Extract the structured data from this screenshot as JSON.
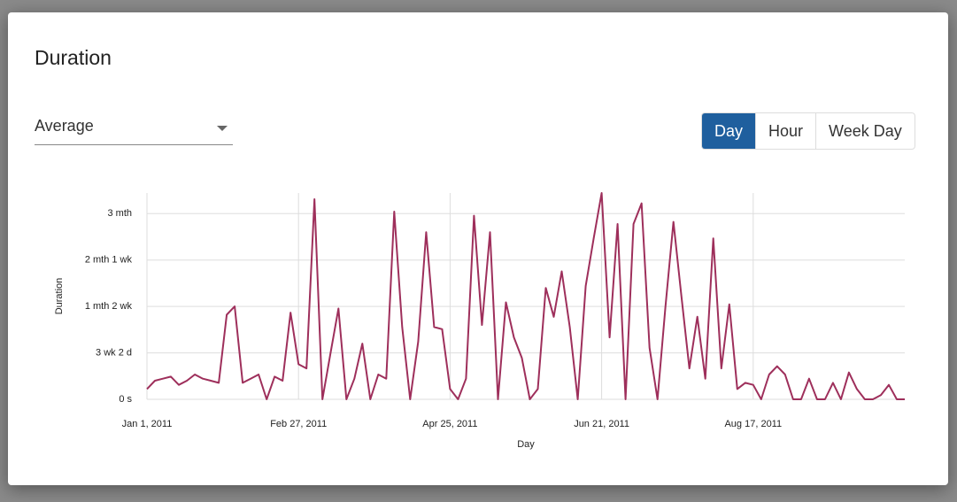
{
  "dialog": {
    "title": "Duration",
    "dropdown": "Average",
    "buttons": [
      "Day",
      "Hour",
      "Week Day"
    ]
  },
  "chart_data": {
    "type": "line",
    "x_label": "Day",
    "y_label": "Duration",
    "color": "#9e2f5b",
    "grid": true,
    "x": [
      "2011-01-01",
      "2011-01-04",
      "2011-01-07",
      "2011-01-10",
      "2011-01-13",
      "2011-01-16",
      "2011-01-19",
      "2011-01-22",
      "2011-01-25",
      "2011-01-28",
      "2011-01-31",
      "2011-02-03",
      "2011-02-06",
      "2011-02-09",
      "2011-02-12",
      "2011-02-15",
      "2011-02-18",
      "2011-02-21",
      "2011-02-24",
      "2011-02-27",
      "2011-03-02",
      "2011-03-05",
      "2011-03-08",
      "2011-03-11",
      "2011-03-14",
      "2011-03-17",
      "2011-03-20",
      "2011-03-23",
      "2011-03-26",
      "2011-03-29",
      "2011-04-01",
      "2011-04-04",
      "2011-04-07",
      "2011-04-10",
      "2011-04-13",
      "2011-04-16",
      "2011-04-19",
      "2011-04-22",
      "2011-04-25",
      "2011-04-28",
      "2011-05-01",
      "2011-05-04",
      "2011-05-07",
      "2011-05-10",
      "2011-05-13",
      "2011-05-16",
      "2011-05-19",
      "2011-05-22",
      "2011-05-25",
      "2011-05-28",
      "2011-05-31",
      "2011-06-03",
      "2011-06-06",
      "2011-06-09",
      "2011-06-12",
      "2011-06-15",
      "2011-06-18",
      "2011-06-21",
      "2011-06-24",
      "2011-06-27",
      "2011-06-30",
      "2011-07-03",
      "2011-07-06",
      "2011-07-09",
      "2011-07-12",
      "2011-07-15",
      "2011-07-18",
      "2011-07-21",
      "2011-07-24",
      "2011-07-27",
      "2011-07-30",
      "2011-08-02",
      "2011-08-05",
      "2011-08-08",
      "2011-08-11",
      "2011-08-14",
      "2011-08-17",
      "2011-08-20",
      "2011-08-23",
      "2011-08-26",
      "2011-08-29",
      "2011-09-01",
      "2011-09-04",
      "2011-09-07",
      "2011-09-10",
      "2011-09-13",
      "2011-09-16",
      "2011-09-19",
      "2011-09-22",
      "2011-09-25",
      "2011-09-28",
      "2011-10-01",
      "2011-10-04",
      "2011-10-07",
      "2011-10-10",
      "2011-10-13"
    ],
    "values": [
      5,
      9,
      10,
      11,
      7,
      9,
      12,
      10,
      9,
      8,
      41,
      45,
      8,
      10,
      12,
      0,
      11,
      9,
      42,
      17,
      15,
      97,
      0,
      22,
      44,
      0,
      10,
      27,
      0,
      12,
      10,
      91,
      35,
      0,
      28,
      81,
      35,
      34,
      5,
      0,
      10,
      89,
      36,
      81,
      0,
      47,
      30,
      20,
      0,
      5,
      54,
      40,
      62,
      35,
      0,
      55,
      78,
      100,
      30,
      85,
      0,
      85,
      95,
      25,
      0,
      45,
      86,
      50,
      15,
      40,
      10,
      78,
      15,
      46,
      5,
      8,
      7,
      0,
      12,
      16,
      12,
      0,
      0,
      10,
      0,
      0,
      8,
      0,
      13,
      5,
      0,
      0,
      2,
      7,
      0,
      0
    ],
    "xlim": [
      "2011-01-01",
      "2011-10-13"
    ],
    "xticks": [
      {
        "value": "2011-01-01",
        "label": "Jan 1, 2011"
      },
      {
        "value": "2011-02-27",
        "label": "Feb 27, 2011"
      },
      {
        "value": "2011-04-25",
        "label": "Apr 25, 2011"
      },
      {
        "value": "2011-06-21",
        "label": "Jun 21, 2011"
      },
      {
        "value": "2011-08-17",
        "label": "Aug 17, 2011"
      }
    ],
    "ylim": [
      0,
      100
    ],
    "yticks": [
      {
        "value": 0,
        "label": "0 s"
      },
      {
        "value": 22.5,
        "label": "3 wk 2 d"
      },
      {
        "value": 45,
        "label": "1 mth 2 wk"
      },
      {
        "value": 67.5,
        "label": "2 mth 1 wk"
      },
      {
        "value": 90,
        "label": "3 mth"
      }
    ]
  }
}
